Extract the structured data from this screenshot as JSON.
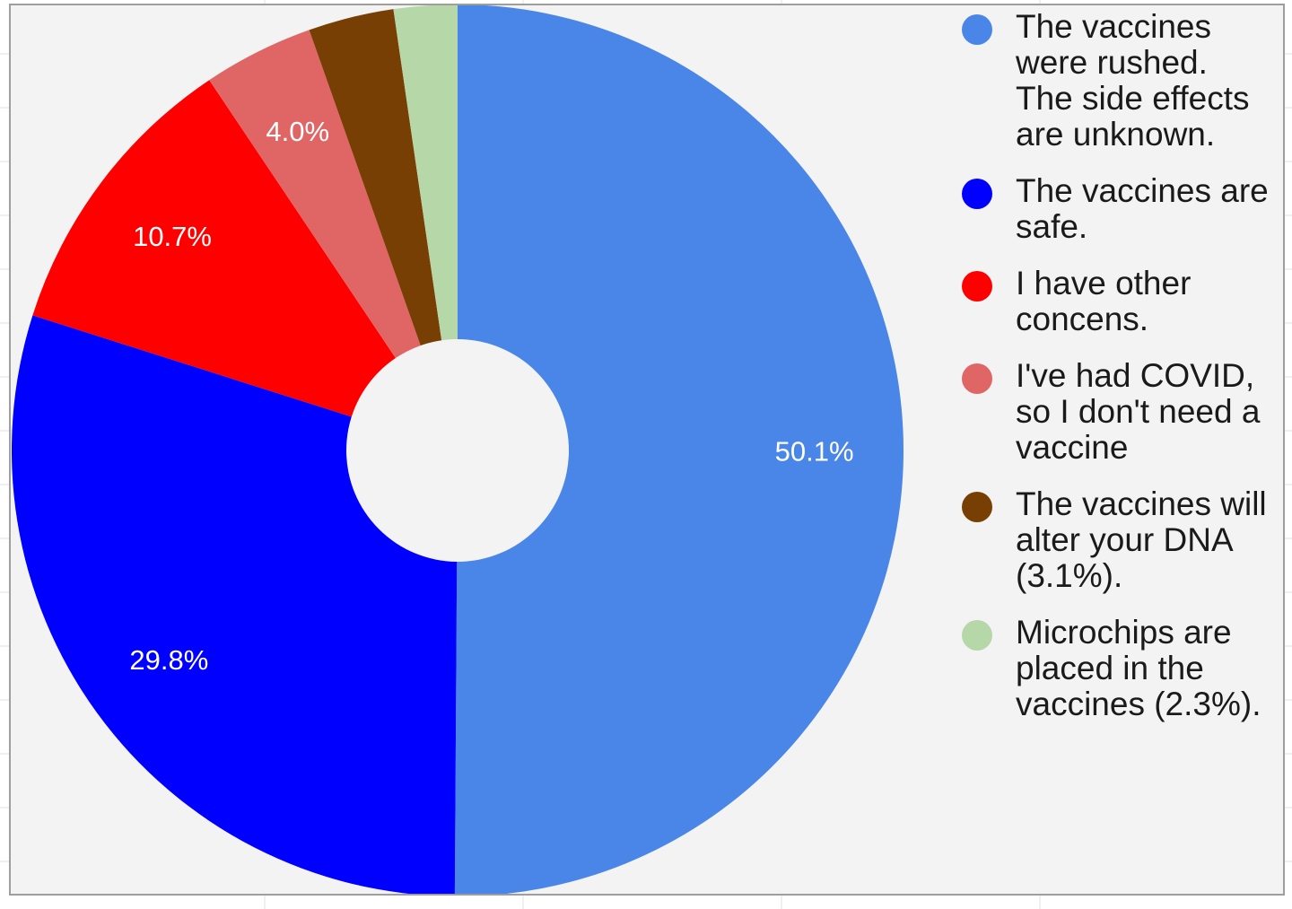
{
  "chart_data": {
    "type": "pie",
    "donut": true,
    "slices": [
      {
        "name": "The vaccines were rushed. The side effects are unknown.",
        "value": 50.1,
        "label": "50.1%",
        "color": "#4a86e8"
      },
      {
        "name": "The vaccines are safe.",
        "value": 29.8,
        "label": "29.8%",
        "color": "#0000ff"
      },
      {
        "name": "I have other concens.",
        "value": 10.7,
        "label": "10.7%",
        "color": "#ff0000"
      },
      {
        "name": "I've had COVID, so I don't need a vaccine",
        "value": 4.0,
        "label": "4.0%",
        "color": "#e06666"
      },
      {
        "name": "The vaccines will alter your DNA (3.1%).",
        "value": 3.1,
        "label": "",
        "color": "#783f04"
      },
      {
        "name": "Microchips are placed in the vaccines (2.3%).",
        "value": 2.3,
        "label": "",
        "color": "#b6d7a8"
      }
    ],
    "legend_position": "right",
    "background": "#f3f3f3"
  },
  "legend": {
    "items": [
      {
        "lines": [
          "The vaccines",
          "were rushed.",
          "The side effects",
          "are unknown."
        ]
      },
      {
        "lines": [
          "The vaccines are",
          "safe."
        ]
      },
      {
        "lines": [
          "I have other",
          "concens."
        ]
      },
      {
        "lines": [
          "I've had COVID,",
          "so I don't need a",
          "vaccine"
        ]
      },
      {
        "lines": [
          "The vaccines will",
          "alter your DNA",
          "(3.1%)."
        ]
      },
      {
        "lines": [
          "Microchips are",
          "placed in the",
          "vaccines (2.3%)."
        ]
      }
    ]
  }
}
